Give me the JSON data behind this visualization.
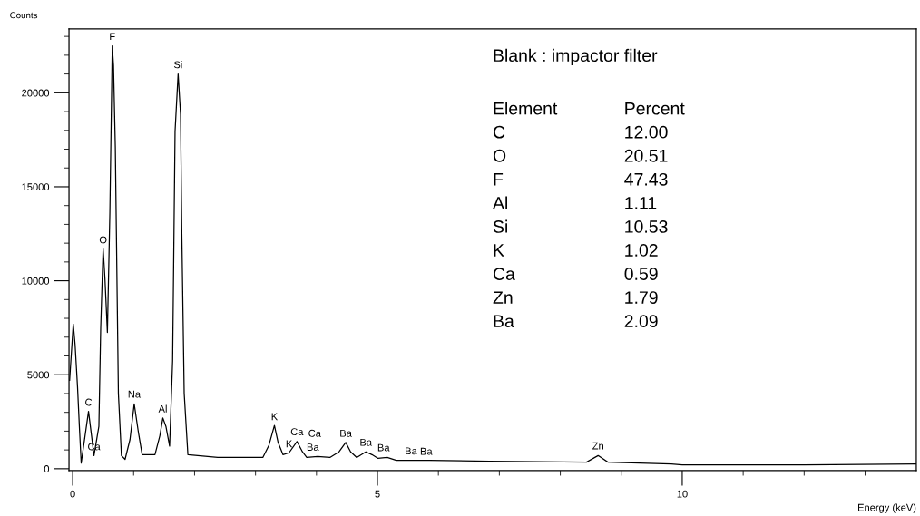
{
  "chart_data": {
    "type": "line",
    "xlabel": "Energy (keV)",
    "ylabel": "Counts",
    "xlim": [
      -0.06,
      13.84
    ],
    "ylim": [
      -100,
      23400
    ],
    "xticks": [
      0,
      {
        "value": 1,
        "label": null
      },
      {
        "value": 2,
        "label": null
      },
      {
        "value": 3,
        "label": null
      },
      {
        "value": 4,
        "label": null
      },
      5,
      {
        "value": 6,
        "label": null
      },
      {
        "value": 7,
        "label": null
      },
      {
        "value": 8,
        "label": null
      },
      {
        "value": 9,
        "label": null
      },
      10,
      {
        "value": 11,
        "label": null
      },
      {
        "value": 12,
        "label": null
      },
      {
        "value": 13,
        "label": null
      }
    ],
    "yticks": [
      0,
      {
        "value": 1000,
        "label": null
      },
      {
        "value": 2000,
        "label": null
      },
      {
        "value": 3000,
        "label": null
      },
      {
        "value": 4000,
        "label": null
      },
      5000,
      {
        "value": 6000,
        "label": null
      },
      {
        "value": 7000,
        "label": null
      },
      {
        "value": 8000,
        "label": null
      },
      {
        "value": 9000,
        "label": null
      },
      10000,
      {
        "value": 11000,
        "label": null
      },
      {
        "value": 12000,
        "label": null
      },
      {
        "value": 13000,
        "label": null
      },
      {
        "value": 14000,
        "label": null
      },
      15000,
      {
        "value": 16000,
        "label": null
      },
      {
        "value": 17000,
        "label": null
      },
      {
        "value": 18000,
        "label": null
      },
      {
        "value": 19000,
        "label": null
      },
      20000,
      {
        "value": 21000,
        "label": null
      },
      {
        "value": 22000,
        "label": null
      },
      {
        "value": 23000,
        "label": null
      }
    ],
    "grid": false,
    "legend": false,
    "marker": "none",
    "line_style": "solid",
    "series": [
      {
        "color": "#000000",
        "x": [
          -0.05,
          0.01,
          0.04,
          0.08,
          0.11,
          0.14,
          0.26,
          0.35,
          0.43,
          0.46,
          0.5,
          0.53,
          0.57,
          0.61,
          0.65,
          0.67,
          0.7,
          0.73,
          0.75,
          0.8,
          0.86,
          0.94,
          1.01,
          1.08,
          1.14,
          1.35,
          1.43,
          1.48,
          1.53,
          1.59,
          1.64,
          1.68,
          1.73,
          1.77,
          1.79,
          1.83,
          1.89,
          2.38,
          3.12,
          3.22,
          3.31,
          3.37,
          3.45,
          3.55,
          3.68,
          3.77,
          3.84,
          4.02,
          4.22,
          4.37,
          4.48,
          4.56,
          4.66,
          4.81,
          4.91,
          5.01,
          5.16,
          5.31,
          5.85,
          6.84,
          8.43,
          8.62,
          8.78,
          9.82,
          10.0,
          12.0,
          13.84
        ],
        "values": [
          4700,
          7700,
          6600,
          4350,
          2250,
          300,
          3050,
          700,
          2250,
          7500,
          11700,
          10100,
          7250,
          13600,
          22500,
          21450,
          17100,
          9250,
          4000,
          700,
          500,
          1550,
          3450,
          1900,
          750,
          750,
          1750,
          2700,
          2250,
          1200,
          5750,
          17950,
          21000,
          18850,
          12700,
          4000,
          750,
          600,
          600,
          1250,
          2300,
          1400,
          750,
          850,
          1450,
          900,
          600,
          650,
          600,
          900,
          1400,
          900,
          600,
          900,
          750,
          550,
          600,
          450,
          450,
          400,
          350,
          700,
          350,
          250,
          200,
          200,
          250
        ]
      }
    ],
    "annotations": [
      {
        "text": "F",
        "x": 0.65,
        "y": 22500
      },
      {
        "text": "Si",
        "x": 1.73,
        "y": 21000
      },
      {
        "text": "O",
        "x": 0.5,
        "y": 11680
      },
      {
        "text": "C",
        "x": 0.26,
        "y": 3040
      },
      {
        "text": "Ca",
        "x": 0.35,
        "y": 680
      },
      {
        "text": "Na",
        "x": 1.01,
        "y": 3470
      },
      {
        "text": "Al",
        "x": 1.48,
        "y": 2690
      },
      {
        "text": "K",
        "x": 3.31,
        "y": 2280
      },
      {
        "text": "K",
        "x": 3.55,
        "y": 830
      },
      {
        "text": "Ca",
        "x": 3.68,
        "y": 1470
      },
      {
        "text": "Ba",
        "x": 3.94,
        "y": 650
      },
      {
        "text": "Ca",
        "x": 3.97,
        "y": 650
      },
      {
        "text": "Ba",
        "x": 4.48,
        "y": 1390
      },
      {
        "text": "Ba",
        "x": 4.81,
        "y": 910
      },
      {
        "text": "Ba",
        "x": 5.1,
        "y": 625
      },
      {
        "text": "Ba",
        "x": 5.55,
        "y": 450
      },
      {
        "text": "Ba",
        "x": 5.8,
        "y": 430
      },
      {
        "text": "Zn",
        "x": 8.62,
        "y": 720
      },
      "Blank : impactor filter",
      "Element",
      "Percent",
      "C",
      "12.00",
      "O",
      "20.51",
      "F",
      "47.43",
      "Al",
      "1.11",
      "Si",
      "10.53",
      "K",
      "1.02",
      "Ca",
      "0.59",
      "Zn",
      "1.79",
      "Ba",
      "2.09"
    ]
  }
}
